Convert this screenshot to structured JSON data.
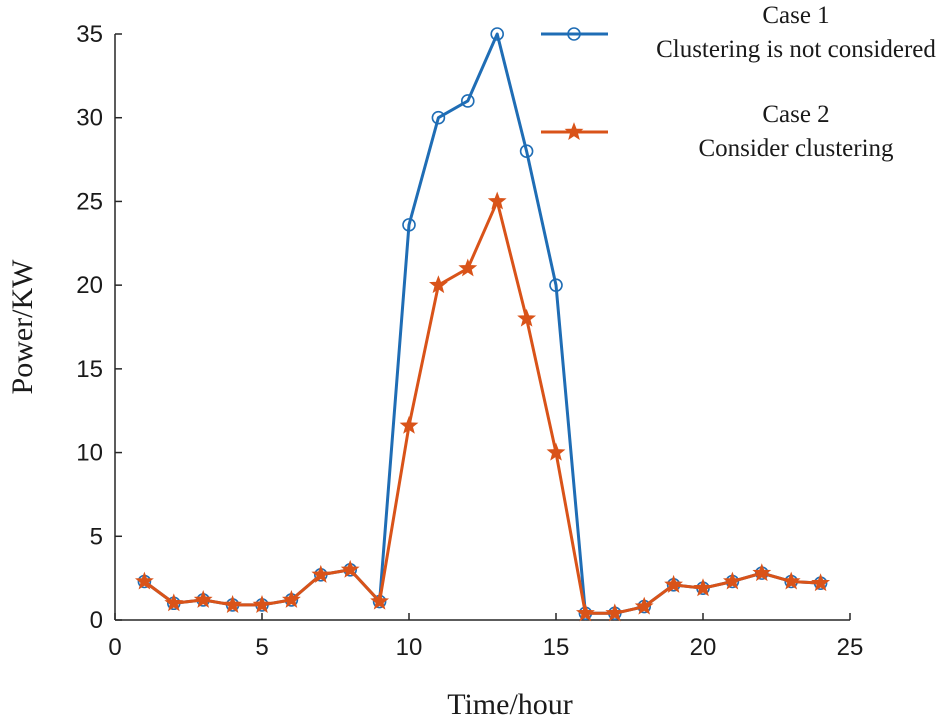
{
  "chart_data": {
    "type": "line",
    "xlabel": "Time/hour",
    "ylabel": "Power/KW",
    "xlim": [
      0,
      25
    ],
    "ylim": [
      0,
      35
    ],
    "xticks": [
      0,
      5,
      10,
      15,
      20,
      25
    ],
    "yticks": [
      0,
      5,
      10,
      15,
      20,
      25,
      30,
      35
    ],
    "grid": false,
    "legend_position": "top-right",
    "series": [
      {
        "name": "Case 1 Clustering is not considered",
        "legend_lines": [
          "Case 1",
          "Clustering is not considered"
        ],
        "color": "#1f6db5",
        "marker": "circle",
        "x": [
          1,
          2,
          3,
          4,
          5,
          6,
          7,
          8,
          9,
          10,
          11,
          12,
          13,
          14,
          15,
          16,
          17,
          18,
          19,
          20,
          21,
          22,
          23,
          24
        ],
        "values": [
          2.3,
          1.0,
          1.2,
          0.9,
          0.9,
          1.2,
          2.7,
          3.0,
          1.1,
          23.6,
          30.0,
          31.0,
          35.0,
          28.0,
          20.0,
          0.4,
          0.4,
          0.8,
          2.1,
          1.9,
          2.3,
          2.8,
          2.3,
          2.2
        ]
      },
      {
        "name": "Case 2 Consider clustering",
        "legend_lines": [
          "Case 2",
          "Consider clustering"
        ],
        "color": "#d95319",
        "marker": "star",
        "x": [
          1,
          2,
          3,
          4,
          5,
          6,
          7,
          8,
          9,
          10,
          11,
          12,
          13,
          14,
          15,
          16,
          17,
          18,
          19,
          20,
          21,
          22,
          23,
          24
        ],
        "values": [
          2.3,
          1.0,
          1.2,
          0.9,
          0.9,
          1.2,
          2.7,
          3.0,
          1.1,
          11.6,
          20.0,
          21.0,
          25.0,
          18.0,
          10.0,
          0.4,
          0.4,
          0.8,
          2.1,
          1.9,
          2.3,
          2.8,
          2.3,
          2.2
        ]
      }
    ]
  }
}
